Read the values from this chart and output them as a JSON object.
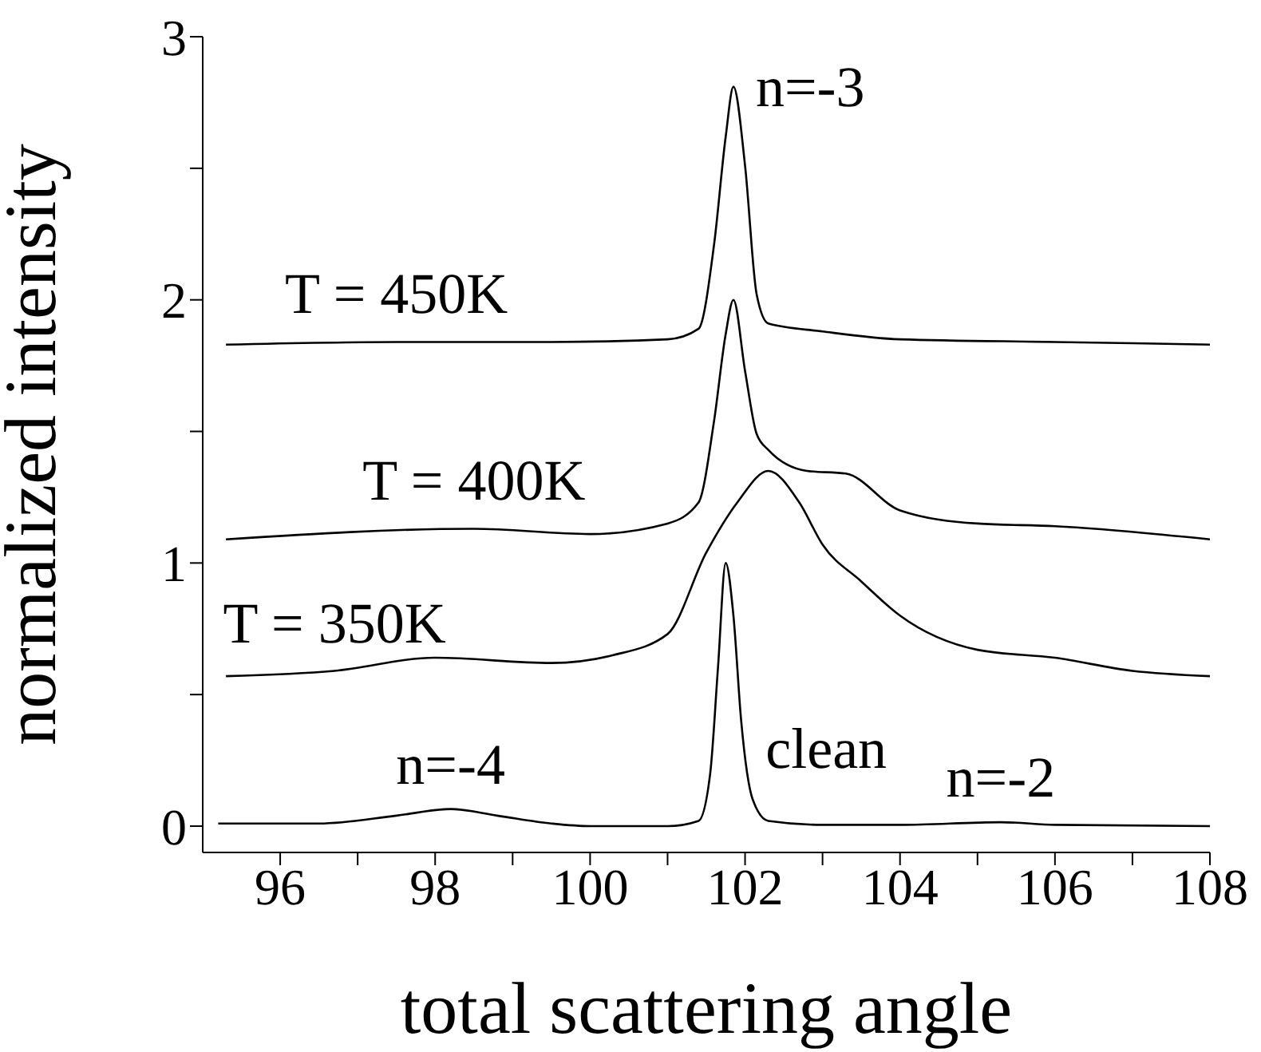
{
  "chart_data": {
    "type": "line",
    "xlabel": "total scattering angle",
    "ylabel": "normalized intensity",
    "xlim": [
      95,
      108
    ],
    "ylim": [
      -0.1,
      3
    ],
    "xticks": [
      96,
      {
        "value": 97,
        "label": null
      },
      98,
      {
        "value": 99,
        "label": null
      },
      100,
      {
        "value": 101,
        "label": null
      },
      102,
      {
        "value": 103,
        "label": null
      },
      104,
      {
        "value": 105,
        "label": null
      },
      106,
      {
        "value": 107,
        "label": null
      },
      108
    ],
    "yticks": [
      0,
      {
        "value": 0.5,
        "label": null
      },
      1,
      {
        "value": 1.5,
        "label": null
      },
      2,
      {
        "value": 2.5,
        "label": null
      },
      3
    ],
    "grid": false,
    "legend": false,
    "marker": "none",
    "line_style": "solid",
    "series": [
      {
        "name": "clean",
        "color": "#000000",
        "x": [
          95.2,
          96.5,
          97.5,
          98.2,
          98.8,
          99.5,
          100,
          101,
          101.4,
          101.55,
          101.65,
          101.75,
          101.85,
          101.95,
          102.1,
          102.3,
          103,
          104,
          105.3,
          106,
          108
        ],
        "values": [
          0.01,
          0.01,
          0.04,
          0.065,
          0.04,
          0.01,
          0,
          0,
          0.02,
          0.2,
          0.6,
          1.0,
          0.8,
          0.4,
          0.1,
          0.02,
          0.005,
          0.005,
          0.015,
          0.005,
          0
        ]
      },
      {
        "name": "T = 350K",
        "color": "#000000",
        "x": [
          95.3,
          96.7,
          98,
          99.5,
          100.3,
          101,
          101.5,
          101.9,
          102.3,
          102.7,
          103,
          103.5,
          104,
          105,
          106,
          107,
          108
        ],
        "values": [
          0.57,
          0.59,
          0.64,
          0.62,
          0.65,
          0.73,
          1.04,
          1.23,
          1.35,
          1.23,
          1.07,
          0.93,
          0.8,
          0.67,
          0.64,
          0.59,
          0.57
        ]
      },
      {
        "name": "T = 400K",
        "color": "#000000",
        "x": [
          95.3,
          98.5,
          100,
          101,
          101.4,
          101.6,
          101.75,
          101.85,
          102,
          102.15,
          102.3,
          102.8,
          103.3,
          104,
          105,
          106,
          108
        ],
        "values": [
          1.09,
          1.13,
          1.11,
          1.15,
          1.23,
          1.54,
          1.87,
          2.0,
          1.73,
          1.49,
          1.43,
          1.35,
          1.34,
          1.2,
          1.15,
          1.14,
          1.09
        ]
      },
      {
        "name": "T = 450K",
        "color": "#000000",
        "x": [
          95.3,
          97.5,
          99.5,
          101,
          101.4,
          101.6,
          101.75,
          101.85,
          102,
          102.15,
          102.3,
          103,
          104,
          106,
          108
        ],
        "values": [
          1.83,
          1.84,
          1.84,
          1.85,
          1.89,
          2.21,
          2.62,
          2.81,
          2.51,
          2.02,
          1.91,
          1.88,
          1.85,
          1.84,
          1.83
        ]
      }
    ],
    "annotations": [
      {
        "text": "n=-3",
        "x": 101.85,
        "y": 2.81
      },
      {
        "text": "n=-4",
        "x": 98.2,
        "y": 0.065
      },
      {
        "text": "n=-2",
        "x": 105.3,
        "y": 0.015
      }
    ]
  }
}
